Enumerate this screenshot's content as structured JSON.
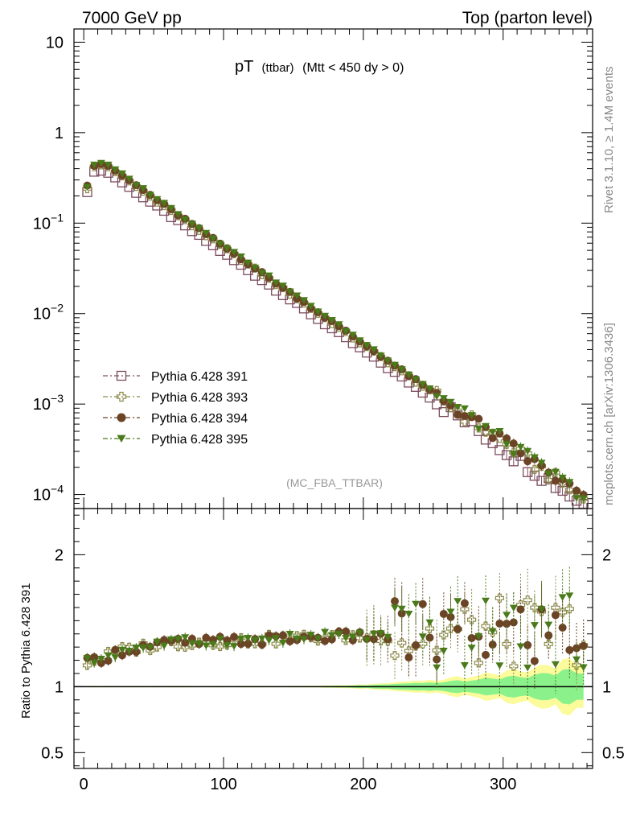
{
  "header": {
    "left": "7000 GeV pp",
    "right": "Top (parton level)"
  },
  "title": {
    "main": "pT",
    "small": "(ttbar)",
    "rest": "(Mtt < 450 dy > 0)"
  },
  "analysis_tag": "(MC_FBA_TTBAR)",
  "side_text": {
    "rivet": "Rivet 3.1.10, ≥ 1.4M events",
    "mcplots": "mcplots.cern.ch [arXiv:1306.3436]"
  },
  "ratio_ylabel": "Ratio to Pythia 6.428 391",
  "chart_data": [
    {
      "type": "scatter",
      "panel": "main",
      "yscale": "log",
      "xlim": [
        -7,
        364
      ],
      "ylim": [
        7e-05,
        14
      ],
      "y_tick_labels": [
        {
          "value": 10,
          "base": "10",
          "exp": ""
        },
        {
          "value": 1,
          "base": "1",
          "exp": ""
        },
        {
          "value": 0.1,
          "base": "10",
          "exp": "−1"
        },
        {
          "value": 0.01,
          "base": "10",
          "exp": "−2"
        },
        {
          "value": 0.001,
          "base": "10",
          "exp": "−3"
        },
        {
          "value": 0.0001,
          "base": "10",
          "exp": "−4"
        }
      ],
      "legend": "lower-left",
      "model": {
        "x_first": 2.5,
        "x_step": 5,
        "peak_x": 12.5,
        "slope_per_unit_x": -0.0248
      },
      "series": [
        {
          "name": "Pythia 6.428 391",
          "color": "#7b4d5e",
          "marker": "open-square",
          "values": [
            0.22,
            0.37,
            0.38,
            0.36,
            0.32
          ]
        },
        {
          "name": "Pythia 6.428 393",
          "color": "#8c8a4a",
          "marker": "open-cross",
          "values": [
            0.24,
            0.42,
            0.44,
            0.42,
            0.37
          ]
        },
        {
          "name": "Pythia 6.428 394",
          "color": "#6b4426",
          "marker": "filled-circle",
          "values": [
            0.26,
            0.43,
            0.45,
            0.43,
            0.38
          ]
        },
        {
          "name": "Pythia 6.428 395",
          "color": "#4a7a1a",
          "marker": "filled-triangle-down",
          "values": [
            0.25,
            0.44,
            0.46,
            0.44,
            0.39
          ]
        }
      ]
    },
    {
      "type": "scatter",
      "panel": "ratio",
      "xlim": [
        -7,
        364
      ],
      "ylim": [
        0.38,
        2.35
      ],
      "x_ticks": [
        0,
        100,
        200,
        300
      ],
      "y_ticks": [
        0.5,
        1,
        2
      ],
      "band_colors": {
        "inner": "#8bf28b",
        "outer": "#fbfb9b",
        "reference": "#000000"
      },
      "ratio_profile": [
        {
          "x": 2.5,
          "y": 1.18
        },
        {
          "x": 30,
          "y": 1.28
        },
        {
          "x": 60,
          "y": 1.33
        },
        {
          "x": 120,
          "y": 1.35
        },
        {
          "x": 180,
          "y": 1.38
        },
        {
          "x": 250,
          "y": 1.38
        },
        {
          "x": 360,
          "y": 1.42
        }
      ]
    }
  ]
}
